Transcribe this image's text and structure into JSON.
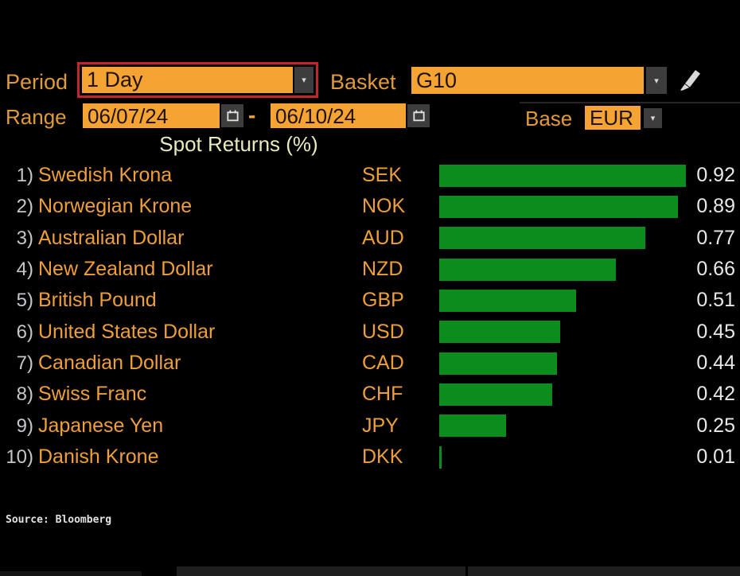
{
  "header": {
    "period": {
      "label": "Period",
      "value": "1 Day"
    },
    "basket": {
      "label": "Basket",
      "value": "G10"
    },
    "range": {
      "label": "Range",
      "start": "06/07/24",
      "separator": "-",
      "end": "06/10/24"
    },
    "base": {
      "label": "Base",
      "value": "EUR"
    }
  },
  "chart_data": {
    "type": "bar",
    "orientation": "horizontal",
    "title": "Spot Returns (%)",
    "categories": [
      "Swedish Krona",
      "Norwegian Krone",
      "Australian Dollar",
      "New Zealand Dollar",
      "British Pound",
      "United States Dollar",
      "Canadian Dollar",
      "Swiss Franc",
      "Japanese Yen",
      "Danish Krone"
    ],
    "tickers": [
      "SEK",
      "NOK",
      "AUD",
      "NZD",
      "GBP",
      "USD",
      "CAD",
      "CHF",
      "JPY",
      "DKK"
    ],
    "ranks": [
      "1)",
      "2)",
      "3)",
      "4)",
      "5)",
      "6)",
      "7)",
      "8)",
      "9)",
      "10)"
    ],
    "values": [
      0.92,
      0.89,
      0.77,
      0.66,
      0.51,
      0.45,
      0.44,
      0.42,
      0.25,
      0.01
    ],
    "xlim": [
      0,
      0.92
    ],
    "grid": false,
    "legend": false,
    "bar_color": "#0b8c1d"
  },
  "footer": {
    "source": "Source: Bloomberg"
  },
  "colors": {
    "background": "#000000",
    "field_orange": "#f5a434",
    "label_orange": "#e09a3a",
    "name_orange": "#ef9f3a",
    "bar_green": "#0b8c1d",
    "highlight_red": "#c2252b",
    "value_white": "#e8e8e8",
    "title_yellow": "#eaeabc"
  }
}
